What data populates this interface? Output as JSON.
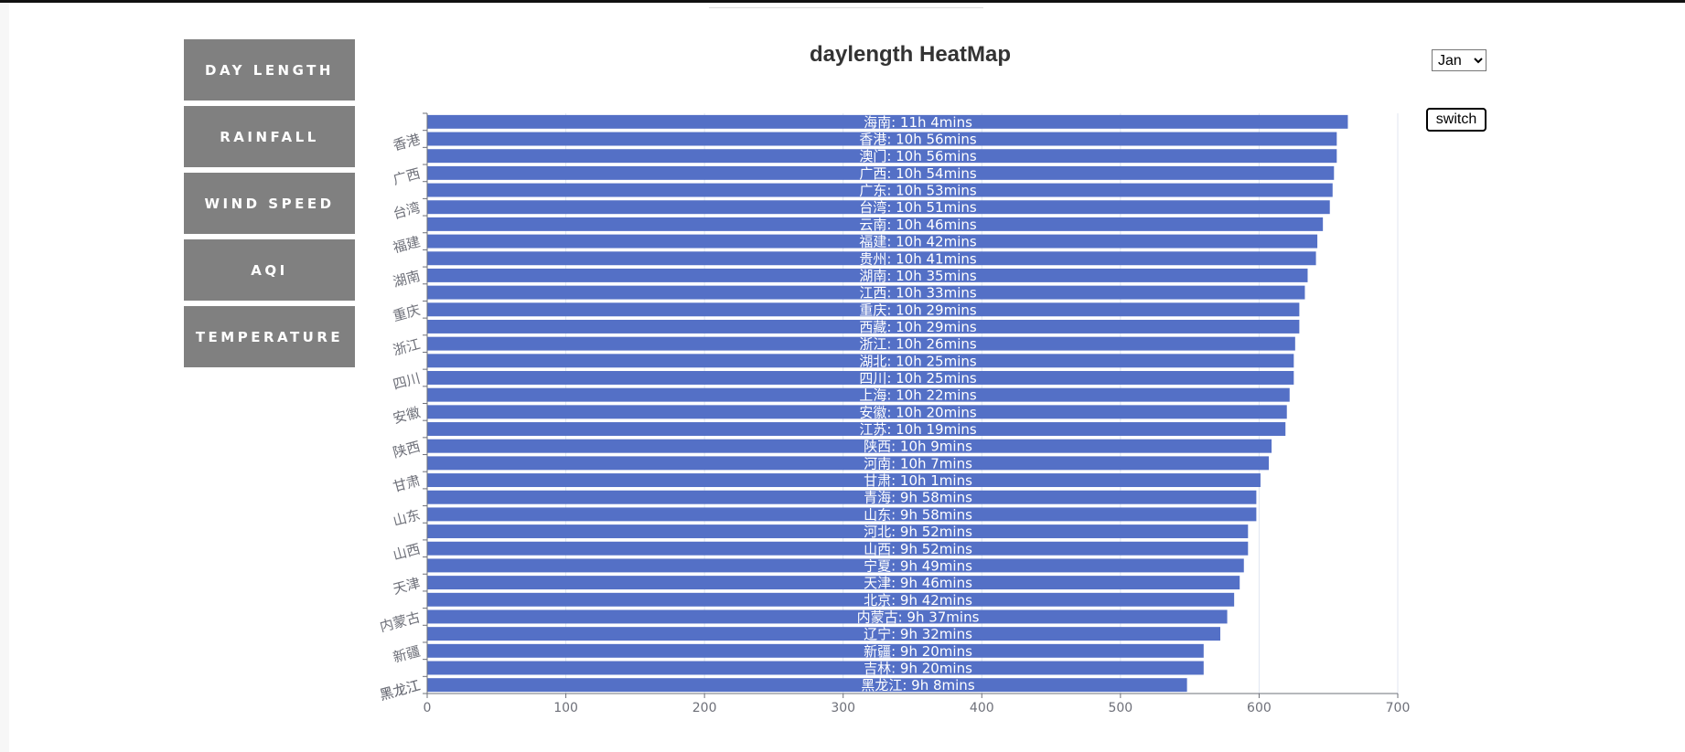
{
  "nav": {
    "items": [
      "DAY LENGTH",
      "RAINFALL",
      "WIND SPEED",
      "AQI",
      "TEMPERATURE"
    ]
  },
  "controls": {
    "month": "Jan",
    "switch_label": "switch"
  },
  "colors": {
    "bar": "#5470c6",
    "nav_bg": "#808080",
    "axis": "#6e7079",
    "grid": "#e0e6f1"
  },
  "chart_data": {
    "type": "bar",
    "orientation": "horizontal",
    "title": "daylength HeatMap",
    "categories": [
      "海南",
      "香港",
      "澳门",
      "广西",
      "广东",
      "台湾",
      "云南",
      "福建",
      "贵州",
      "湖南",
      "江西",
      "重庆",
      "西藏",
      "浙江",
      "湖北",
      "四川",
      "上海",
      "安徽",
      "江苏",
      "陕西",
      "河南",
      "甘肃",
      "青海",
      "山东",
      "河北",
      "山西",
      "宁夏",
      "天津",
      "北京",
      "内蒙古",
      "辽宁",
      "新疆",
      "吉林",
      "黑龙江"
    ],
    "values": [
      664,
      656,
      656,
      654,
      653,
      651,
      646,
      642,
      641,
      635,
      633,
      629,
      629,
      626,
      625,
      625,
      622,
      620,
      619,
      609,
      607,
      601,
      598,
      598,
      592,
      592,
      589,
      586,
      582,
      577,
      572,
      560,
      560,
      548
    ],
    "bar_labels": [
      "海南: 11h 4mins",
      "香港: 10h 56mins",
      "澳门: 10h 56mins",
      "广西: 10h 54mins",
      "广东: 10h 53mins",
      "台湾: 10h 51mins",
      "云南: 10h 46mins",
      "福建: 10h 42mins",
      "贵州: 10h 41mins",
      "湖南: 10h 35mins",
      "江西: 10h 33mins",
      "重庆: 10h 29mins",
      "西藏: 10h 29mins",
      "浙江: 10h 26mins",
      "湖北: 10h 25mins",
      "四川: 10h 25mins",
      "上海: 10h 22mins",
      "安徽: 10h 20mins",
      "江苏: 10h 19mins",
      "陕西: 10h 9mins",
      "河南: 10h 7mins",
      "甘肃: 10h 1mins",
      "青海: 9h 58mins",
      "山东: 9h 58mins",
      "河北: 9h 52mins",
      "山西: 9h 52mins",
      "宁夏: 9h 49mins",
      "天津: 9h 46mins",
      "北京: 9h 42mins",
      "内蒙古: 9h 37mins",
      "辽宁: 9h 32mins",
      "新疆: 9h 20mins",
      "吉林: 9h 20mins",
      "黑龙江: 9h 8mins"
    ],
    "y_tick_labels_shown": [
      "香港",
      "广西",
      "台湾",
      "福建",
      "湖南",
      "重庆",
      "浙江",
      "四川",
      "安徽",
      "陕西",
      "甘肃",
      "山东",
      "山西",
      "天津",
      "内蒙古",
      "新疆",
      "黑龙江"
    ],
    "x_ticks": [
      0,
      100,
      200,
      300,
      400,
      500,
      600,
      700
    ],
    "xlim": [
      0,
      700
    ],
    "grid": "vertical"
  }
}
